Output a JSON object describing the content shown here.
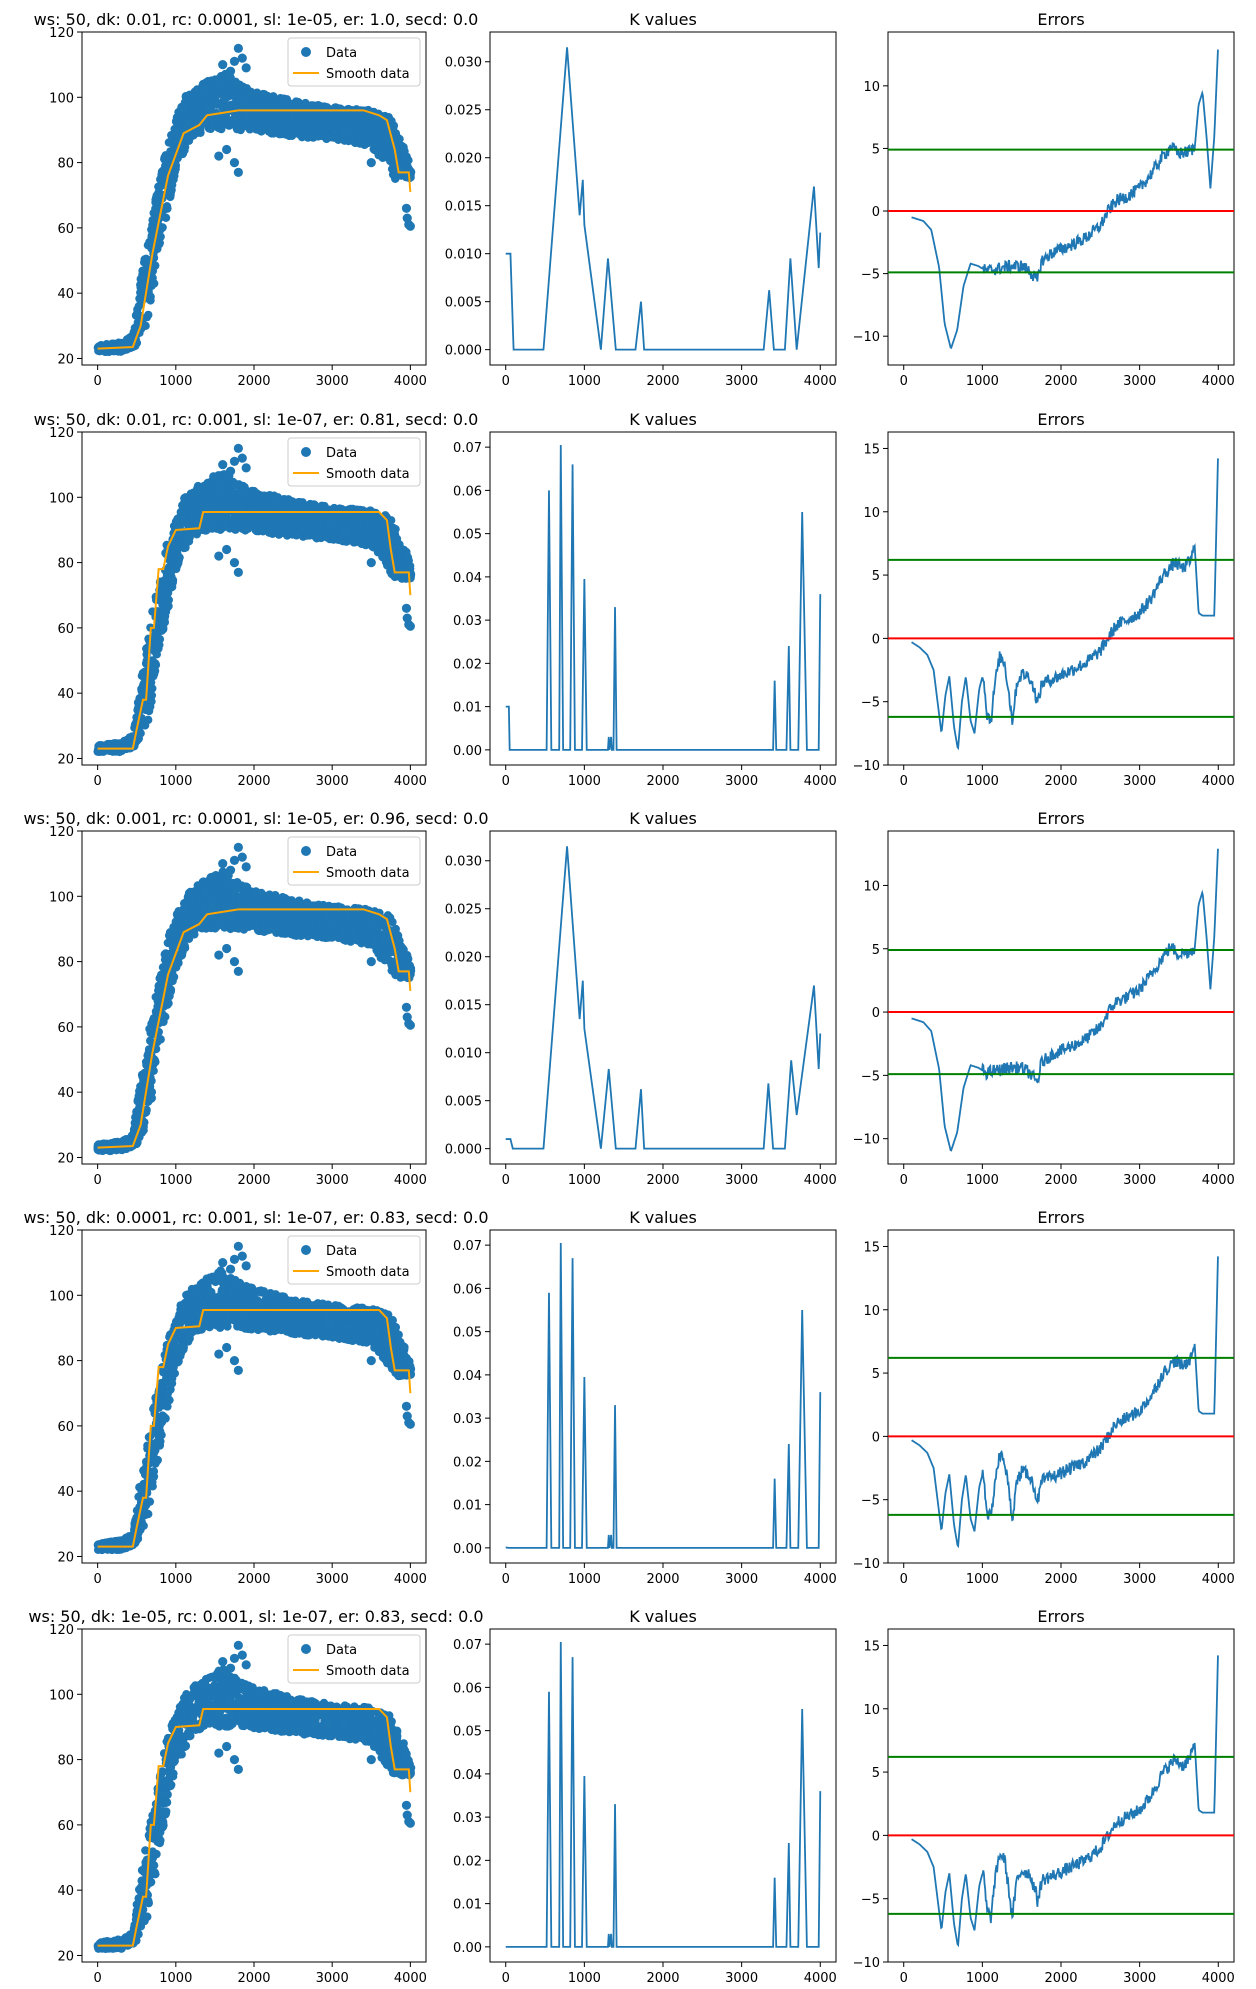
{
  "colors": {
    "data": "#1f77b4",
    "smooth": "#ffa500",
    "k_line": "#1f77b4",
    "error_line": "#1f77b4",
    "zero_line": "#ff0000",
    "threshold_line": "#008000",
    "axes": "#000000",
    "background": "#ffffff"
  },
  "legend": {
    "data_label": "Data",
    "smooth_label": "Smooth data"
  },
  "rows": [
    {
      "title": "ws: 50, dk: 0.01, rc: 0.0001, sl: 1e-05, er: 1.0, secd: 0.0",
      "smooth_style": "smooth",
      "k_title": "K values",
      "k_ticks": [
        "0.000",
        "0.005",
        "0.010",
        "0.015",
        "0.020",
        "0.025",
        "0.030"
      ],
      "k_ylim": [
        -0.0016,
        0.0331
      ],
      "k_points": [
        [
          0,
          0.01
        ],
        [
          60,
          0.01
        ],
        [
          100,
          0
        ],
        [
          480,
          0
        ],
        [
          780,
          0.0315
        ],
        [
          940,
          0.014
        ],
        [
          980,
          0.0177
        ],
        [
          1000,
          0.013
        ],
        [
          1210,
          0
        ],
        [
          1300,
          0.0095
        ],
        [
          1400,
          0
        ],
        [
          1650,
          0
        ],
        [
          1720,
          0.005
        ],
        [
          1760,
          0
        ],
        [
          3280,
          0
        ],
        [
          3350,
          0.0062
        ],
        [
          3410,
          0
        ],
        [
          3550,
          0
        ],
        [
          3620,
          0.0095
        ],
        [
          3700,
          0
        ],
        [
          3920,
          0.017
        ],
        [
          3980,
          0.0085
        ],
        [
          4000,
          0.0122
        ]
      ],
      "err_title": "Errors",
      "err_ticks": [
        "−10",
        "−5",
        "0",
        "5",
        "10"
      ],
      "err_ylim": [
        -12.3,
        14.3
      ],
      "threshold": 4.9,
      "err_shape": "smooth"
    },
    {
      "title": "ws: 50, dk: 0.01, rc: 0.001, sl: 1e-07, er: 0.81, secd: 0.0",
      "smooth_style": "stepped",
      "k_title": "K values",
      "k_ticks": [
        "0.00",
        "0.01",
        "0.02",
        "0.03",
        "0.04",
        "0.05",
        "0.06",
        "0.07"
      ],
      "k_ylim": [
        -0.0035,
        0.0735
      ],
      "k_points": [
        [
          0,
          0.01
        ],
        [
          40,
          0.01
        ],
        [
          50,
          0
        ],
        [
          520,
          0
        ],
        [
          550,
          0.06
        ],
        [
          580,
          0
        ],
        [
          680,
          0
        ],
        [
          700,
          0.0705
        ],
        [
          730,
          0
        ],
        [
          820,
          0
        ],
        [
          850,
          0.066
        ],
        [
          880,
          0
        ],
        [
          970,
          0
        ],
        [
          1000,
          0.0395
        ],
        [
          1030,
          0
        ],
        [
          1300,
          0
        ],
        [
          1310,
          0.003
        ],
        [
          1320,
          0
        ],
        [
          1340,
          0.003
        ],
        [
          1350,
          0
        ],
        [
          1370,
          0
        ],
        [
          1390,
          0.033
        ],
        [
          1410,
          0
        ],
        [
          3400,
          0
        ],
        [
          3420,
          0.016
        ],
        [
          3440,
          0
        ],
        [
          3570,
          0
        ],
        [
          3600,
          0.024
        ],
        [
          3620,
          0
        ],
        [
          3720,
          0
        ],
        [
          3770,
          0.055
        ],
        [
          3830,
          0
        ],
        [
          3980,
          0
        ],
        [
          4000,
          0.036
        ]
      ],
      "err_title": "Errors",
      "err_ticks": [
        "−10",
        "−5",
        "0",
        "5",
        "10",
        "15"
      ],
      "err_ylim": [
        -10.0,
        16.3
      ],
      "threshold": 6.2,
      "err_shape": "wavy"
    },
    {
      "title": "ws: 50, dk: 0.001, rc: 0.0001, sl: 1e-05, er: 0.96, secd: 0.0",
      "smooth_style": "smooth",
      "k_title": "K values",
      "k_ticks": [
        "0.000",
        "0.005",
        "0.010",
        "0.015",
        "0.020",
        "0.025",
        "0.030"
      ],
      "k_ylim": [
        -0.0016,
        0.0331
      ],
      "k_points": [
        [
          0,
          0.001
        ],
        [
          60,
          0.001
        ],
        [
          90,
          0
        ],
        [
          480,
          0
        ],
        [
          780,
          0.0315
        ],
        [
          940,
          0.0135
        ],
        [
          980,
          0.0175
        ],
        [
          1000,
          0.0125
        ],
        [
          1210,
          0
        ],
        [
          1310,
          0.0083
        ],
        [
          1400,
          0
        ],
        [
          1650,
          0
        ],
        [
          1720,
          0.0062
        ],
        [
          1760,
          0
        ],
        [
          3280,
          0
        ],
        [
          3340,
          0.0068
        ],
        [
          3400,
          0
        ],
        [
          3550,
          0
        ],
        [
          3630,
          0.0092
        ],
        [
          3700,
          0.0035
        ],
        [
          3920,
          0.017
        ],
        [
          3980,
          0.0083
        ],
        [
          4000,
          0.012
        ]
      ],
      "err_title": "Errors",
      "err_ticks": [
        "−10",
        "−5",
        "0",
        "5",
        "10"
      ],
      "err_ylim": [
        -12.0,
        14.3
      ],
      "threshold": 4.9,
      "err_shape": "smooth"
    },
    {
      "title": "ws: 50, dk: 0.0001, rc: 0.001, sl: 1e-07, er: 0.83, secd: 0.0",
      "smooth_style": "stepped",
      "k_title": "K values",
      "k_ticks": [
        "0.00",
        "0.01",
        "0.02",
        "0.03",
        "0.04",
        "0.05",
        "0.06",
        "0.07"
      ],
      "k_ylim": [
        -0.0035,
        0.0735
      ],
      "k_points": [
        [
          0,
          0.0001
        ],
        [
          40,
          0
        ],
        [
          520,
          0
        ],
        [
          550,
          0.059
        ],
        [
          580,
          0
        ],
        [
          680,
          0
        ],
        [
          700,
          0.0705
        ],
        [
          730,
          0
        ],
        [
          820,
          0
        ],
        [
          850,
          0.067
        ],
        [
          880,
          0
        ],
        [
          970,
          0
        ],
        [
          1000,
          0.0395
        ],
        [
          1030,
          0
        ],
        [
          1300,
          0
        ],
        [
          1310,
          0.003
        ],
        [
          1320,
          0
        ],
        [
          1340,
          0.003
        ],
        [
          1350,
          0
        ],
        [
          1370,
          0
        ],
        [
          1390,
          0.033
        ],
        [
          1410,
          0
        ],
        [
          3400,
          0
        ],
        [
          3420,
          0.016
        ],
        [
          3440,
          0
        ],
        [
          3570,
          0
        ],
        [
          3600,
          0.024
        ],
        [
          3620,
          0
        ],
        [
          3720,
          0
        ],
        [
          3770,
          0.055
        ],
        [
          3830,
          0
        ],
        [
          3980,
          0
        ],
        [
          4000,
          0.036
        ]
      ],
      "err_title": "Errors",
      "err_ticks": [
        "−10",
        "−5",
        "0",
        "5",
        "10",
        "15"
      ],
      "err_ylim": [
        -10.0,
        16.3
      ],
      "threshold": 6.2,
      "err_shape": "wavy"
    },
    {
      "title": "ws: 50, dk: 1e-05, rc: 0.001, sl: 1e-07, er: 0.83, secd: 0.0",
      "smooth_style": "stepped",
      "k_title": "K values",
      "k_ticks": [
        "0.00",
        "0.01",
        "0.02",
        "0.03",
        "0.04",
        "0.05",
        "0.06",
        "0.07"
      ],
      "k_ylim": [
        -0.0035,
        0.0735
      ],
      "k_points": [
        [
          0,
          0
        ],
        [
          520,
          0
        ],
        [
          550,
          0.059
        ],
        [
          580,
          0
        ],
        [
          680,
          0
        ],
        [
          700,
          0.0705
        ],
        [
          730,
          0
        ],
        [
          820,
          0
        ],
        [
          850,
          0.067
        ],
        [
          880,
          0
        ],
        [
          970,
          0
        ],
        [
          1000,
          0.0395
        ],
        [
          1030,
          0
        ],
        [
          1300,
          0
        ],
        [
          1310,
          0.003
        ],
        [
          1320,
          0
        ],
        [
          1340,
          0.003
        ],
        [
          1350,
          0
        ],
        [
          1370,
          0
        ],
        [
          1390,
          0.033
        ],
        [
          1410,
          0
        ],
        [
          3400,
          0
        ],
        [
          3420,
          0.016
        ],
        [
          3440,
          0
        ],
        [
          3570,
          0
        ],
        [
          3600,
          0.024
        ],
        [
          3620,
          0
        ],
        [
          3720,
          0
        ],
        [
          3770,
          0.055
        ],
        [
          3830,
          0
        ],
        [
          3980,
          0
        ],
        [
          4000,
          0.036
        ]
      ],
      "err_title": "Errors",
      "err_ticks": [
        "−10",
        "−5",
        "0",
        "5",
        "10",
        "15"
      ],
      "err_ylim": [
        -10.0,
        16.3
      ],
      "threshold": 6.2,
      "err_shape": "wavy"
    }
  ],
  "chart_data": [
    {
      "type": "scatter",
      "title": "ws: 50, dk: 0.01, rc: 0.0001, sl: 1e-05, er: 1.0, secd: 0.0",
      "legend": [
        "Data",
        "Smooth data"
      ],
      "xlim": [
        -200,
        4200
      ],
      "ylim": [
        18,
        120
      ],
      "x_ticks": [
        "0",
        "1000",
        "2000",
        "3000",
        "4000"
      ],
      "y_ticks": [
        "20",
        "40",
        "60",
        "80",
        "100",
        "120"
      ],
      "series": [
        {
          "name": "Data",
          "x": [
            0,
            300,
            500,
            700,
            900,
            1100,
            1300,
            1600,
            1800,
            2000,
            2500,
            3000,
            3500,
            3800,
            3950,
            4000
          ],
          "values": [
            23,
            24,
            27,
            55,
            76,
            90,
            96,
            100,
            103,
            98,
            95,
            94,
            92,
            84,
            76,
            61
          ]
        },
        {
          "name": "Smooth data",
          "x": [
            0,
            450,
            550,
            700,
            900,
            1100,
            1300,
            1400,
            1800,
            3400,
            3600,
            3700,
            3800,
            3850,
            4000
          ],
          "values": [
            23,
            23.5,
            30,
            52,
            76,
            89,
            91.5,
            94.5,
            96,
            96,
            94.5,
            93,
            84,
            77,
            71
          ]
        }
      ]
    },
    {
      "type": "line",
      "title": "K values",
      "xlim": [
        -200,
        4200
      ],
      "ylim": [
        -0.0016,
        0.0331
      ],
      "series": [
        {
          "name": "",
          "x": [
            0,
            60,
            100,
            480,
            780,
            940,
            980,
            1000,
            1210,
            1300,
            1400,
            1650,
            1720,
            1760,
            3280,
            3350,
            3410,
            3550,
            3620,
            3700,
            3920,
            3980,
            4000
          ],
          "values": [
            0.01,
            0.01,
            0,
            0,
            0.0315,
            0.014,
            0.0177,
            0.013,
            0,
            0.0095,
            0,
            0,
            0.005,
            0,
            0,
            0.0062,
            0,
            0,
            0.0095,
            0,
            0.017,
            0.0085,
            0.0122
          ]
        }
      ]
    },
    {
      "type": "line",
      "title": "Errors",
      "xlim": [
        -200,
        4200
      ],
      "ylim": [
        -12.3,
        14.3
      ],
      "series": [
        {
          "name": "",
          "x": [
            100,
            300,
            450,
            600,
            750,
            900,
            1000,
            1500,
            1650,
            1900,
            2300,
            2600,
            3000,
            3300,
            3500,
            3750,
            3850,
            4000
          ],
          "values": [
            -0.5,
            -1.2,
            -4.5,
            -11,
            -8,
            -4.5,
            -4.2,
            -4.7,
            -5.5,
            -3.2,
            -2.3,
            0,
            1.8,
            4.5,
            4.8,
            9.5,
            1.8,
            13.5
          ]
        },
        {
          "name": "zero",
          "values": [
            0
          ]
        },
        {
          "name": "threshold",
          "values": [
            4.9,
            -4.9
          ]
        }
      ]
    },
    {
      "type": "scatter",
      "title": "ws: 50, dk: 0.01, rc: 0.001, sl: 1e-07, er: 0.81, secd: 0.0",
      "legend": [
        "Data",
        "Smooth data"
      ],
      "ylim": [
        18,
        120
      ]
    },
    {
      "type": "line",
      "title": "K values",
      "ylim": [
        -0.0035,
        0.0735
      ]
    },
    {
      "type": "line",
      "title": "Errors",
      "ylim": [
        -10.0,
        16.3
      ],
      "series": [
        {
          "name": "threshold",
          "values": [
            6.2,
            -6.2
          ]
        }
      ]
    },
    {
      "type": "scatter",
      "title": "ws: 50, dk: 0.001, rc: 0.0001, sl: 1e-05, er: 0.96, secd: 0.0",
      "legend": [
        "Data",
        "Smooth data"
      ],
      "ylim": [
        18,
        120
      ]
    },
    {
      "type": "line",
      "title": "K values",
      "ylim": [
        -0.0016,
        0.0331
      ]
    },
    {
      "type": "line",
      "title": "Errors",
      "ylim": [
        -12.0,
        14.3
      ],
      "series": [
        {
          "name": "threshold",
          "values": [
            4.9,
            -4.9
          ]
        }
      ]
    },
    {
      "type": "scatter",
      "title": "ws: 50, dk: 0.0001, rc: 0.001, sl: 1e-07, er: 0.83, secd: 0.0",
      "legend": [
        "Data",
        "Smooth data"
      ],
      "ylim": [
        18,
        120
      ]
    },
    {
      "type": "line",
      "title": "K values",
      "ylim": [
        -0.0035,
        0.0735
      ]
    },
    {
      "type": "line",
      "title": "Errors",
      "ylim": [
        -10.0,
        16.3
      ],
      "series": [
        {
          "name": "threshold",
          "values": [
            6.2,
            -6.2
          ]
        }
      ]
    },
    {
      "type": "scatter",
      "title": "ws: 50, dk: 1e-05, rc: 0.001, sl: 1e-07, er: 0.83, secd: 0.0",
      "legend": [
        "Data",
        "Smooth data"
      ],
      "ylim": [
        18,
        120
      ]
    },
    {
      "type": "line",
      "title": "K values",
      "ylim": [
        -0.0035,
        0.0735
      ]
    },
    {
      "type": "line",
      "title": "Errors",
      "ylim": [
        -10.0,
        16.3
      ],
      "series": [
        {
          "name": "threshold",
          "values": [
            6.2,
            -6.2
          ]
        }
      ]
    }
  ]
}
